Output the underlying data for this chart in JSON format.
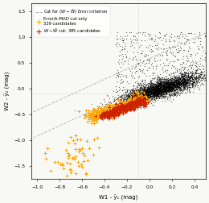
{
  "title": "",
  "xlabel": "W1 - ŷ₁ (mag)",
  "ylabel": "W2 - ŷ₂ (mag)",
  "xlim": [
    -1.05,
    0.5
  ],
  "ylim": [
    -1.75,
    1.65
  ],
  "background_color": "#f8f8f5",
  "vline_x": -0.1,
  "hline_y": -0.1,
  "seed": 42,
  "n_main": 4000,
  "n_orange": 339,
  "n_red": 385
}
